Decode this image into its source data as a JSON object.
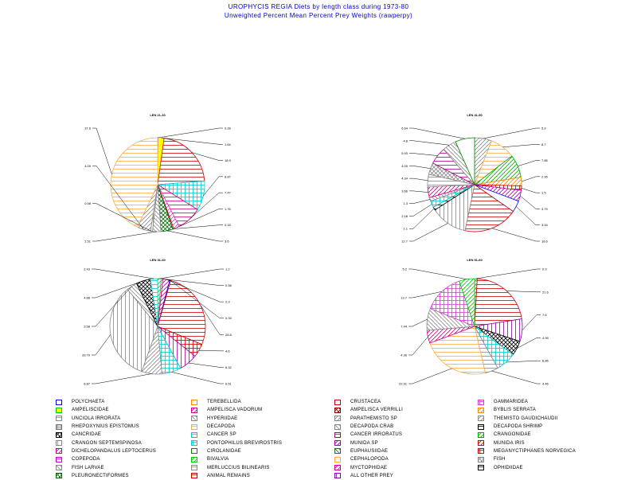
{
  "title": {
    "line1": "UROPHYCIS REGIA Diets by length class during 1973-80",
    "line2": "Unweighted Percent Mean Percent Prey Weights (rawperpy)"
  },
  "legend": [
    {
      "label": "POLYCHAETA",
      "color": "#0000ff",
      "pattern": "outline"
    },
    {
      "label": "AMPELISCIDAE",
      "color": "#00cc00",
      "pattern": "solid-yellow"
    },
    {
      "label": "UNCIOLA IRRORATA",
      "color": "#888888",
      "pattern": "hstripe"
    },
    {
      "label": "RHEPOXYNIUS EPISTOMUS",
      "color": "#777777",
      "pattern": "check"
    },
    {
      "label": "CANCRIDAE",
      "color": "#000000",
      "pattern": "xcross"
    },
    {
      "label": "CRANGON SEPTEMSPINOSA",
      "color": "#888888",
      "pattern": "vstripe"
    },
    {
      "label": "DICHELOPANDALUS LEPTOCERUS",
      "color": "#cc0088",
      "pattern": "diag"
    },
    {
      "label": "COPEPODA",
      "color": "#cc00cc",
      "pattern": "hstripe"
    },
    {
      "label": "FISH LARVAE",
      "color": "#888888",
      "pattern": "diag2"
    },
    {
      "label": "PLEURONECTIFORMES",
      "color": "#006600",
      "pattern": "xcross"
    },
    {
      "label": "TEREBELLIDA",
      "color": "#ff8800",
      "pattern": "outline"
    },
    {
      "label": "AMPELISCA VADORUM",
      "color": "#cc0088",
      "pattern": "diag"
    },
    {
      "label": "HYPERIIDAE",
      "color": "#888888",
      "pattern": "diag2"
    },
    {
      "label": "DECAPODA",
      "color": "#ffaa44",
      "pattern": "hstripe"
    },
    {
      "label": "CANCER SP",
      "color": "#00cccc",
      "pattern": "hstripe"
    },
    {
      "label": "PONTOPHILUS BREVIROSTRIS",
      "color": "#00cccc",
      "pattern": "grid"
    },
    {
      "label": "CIROLANIDAE",
      "color": "#008800",
      "pattern": "outline"
    },
    {
      "label": "BIVALVIA",
      "color": "#00cc00",
      "pattern": "diag"
    },
    {
      "label": "MERLUCCIUS BILINEARIS",
      "color": "#888888",
      "pattern": "hstripe"
    },
    {
      "label": "ANIMAL REMAINS",
      "color": "#cc0000",
      "pattern": "hstripe"
    },
    {
      "label": "CRUSTACEA",
      "color": "#cc0000",
      "pattern": "outline"
    },
    {
      "label": "AMPELISCA VERRILLI",
      "color": "#880000",
      "pattern": "xcross"
    },
    {
      "label": "PARATHEMISTO SP",
      "color": "#888888",
      "pattern": "diag"
    },
    {
      "label": "DECAPODA CRAB",
      "color": "#888888",
      "pattern": "diag2"
    },
    {
      "label": "CANCER IRRORATUS",
      "color": "#aa0088",
      "pattern": "hstripe"
    },
    {
      "label": "MUNIDA SP",
      "color": "#aa00aa",
      "pattern": "diag"
    },
    {
      "label": "EUPHAUSIIDAE",
      "color": "#008800",
      "pattern": "diag2"
    },
    {
      "label": "CEPHALOPODA",
      "color": "#ffaa44",
      "pattern": "outline"
    },
    {
      "label": "MYCTOPHIDAE",
      "color": "#cc0088",
      "pattern": "diag"
    },
    {
      "label": "ALL OTHER PREY",
      "color": "#8800aa",
      "pattern": "vstripe"
    },
    {
      "label": "GAMMARIDEA",
      "color": "#cc44cc",
      "pattern": "grid"
    },
    {
      "label": "BYBLIS SERRATA",
      "color": "#ff8800",
      "pattern": "diag"
    },
    {
      "label": "THEMISTO GAUDICHAUDII",
      "color": "#888888",
      "pattern": "diag"
    },
    {
      "label": "DECAPODA SHRIMP",
      "color": "#000000",
      "pattern": "hstripe"
    },
    {
      "label": "CRANGONIDAE",
      "color": "#00aa00",
      "pattern": "diag"
    },
    {
      "label": "MUNIDA IRIS",
      "color": "#cc0000",
      "pattern": "diag"
    },
    {
      "label": "MEGANYCTIPHANES NORVEGICA",
      "color": "#cc0000",
      "pattern": "grid"
    },
    {
      "label": "FISH",
      "color": "#888888",
      "pattern": "xcross"
    },
    {
      "label": "OPHIDIIDAE",
      "color": "#000000",
      "pattern": "hstripe"
    }
  ],
  "chart_data": [
    {
      "type": "pie",
      "title": "LEN 21-30",
      "colors": [
        "#0000ff",
        "#ffff00",
        "#cc0000",
        "#00cccc",
        "#cc0088",
        "#cc44cc",
        "#cc0000",
        "#006600",
        "#888888",
        "#888888",
        "#888888",
        "#ffaa44"
      ],
      "patterns": [
        "outline",
        "solid-yellow",
        "hstripe",
        "grid",
        "hstripe",
        "diag",
        "hstripe",
        "xcross",
        "diag2",
        "vstripe",
        "diag",
        "hstripe"
      ],
      "values": [
        0.28,
        1.64,
        18.9,
        8.87,
        7.47,
        1.76,
        0.33,
        3.6,
        2.51,
        0.58,
        4.09,
        37.6
      ],
      "labels": [
        "0.28",
        "1.64",
        "18.9",
        "8.87",
        "7.47",
        "1.76",
        "0.33",
        "3.6",
        "2.51",
        "0.58",
        "4.09",
        "37.6"
      ]
    },
    {
      "type": "pie",
      "title": "LEN 41-50",
      "colors": [
        "#888888",
        "#ffaa44",
        "#00aa00",
        "#ff8800",
        "#cc0000",
        "#aa00aa",
        "#0000ff",
        "#cc0000",
        "#888888",
        "#000000",
        "#00cccc",
        "#888888",
        "#cc0088",
        "#888888",
        "#888888",
        "#aa0088",
        "#888888",
        "#008800"
      ],
      "patterns": [
        "diag",
        "hstripe",
        "diag",
        "diag",
        "grid",
        "diag",
        "outline",
        "hstripe",
        "vstripe",
        "hstripe",
        "grid",
        "diag2",
        "diag",
        "hstripe",
        "xcross",
        "hstripe",
        "diag2",
        "outline"
      ],
      "values": [
        5.9,
        8.7,
        7.85,
        2.95,
        1.5,
        3.79,
        3.94,
        18.6,
        12.7,
        1.1,
        2.18,
        1.3,
        3.66,
        4.34,
        4.05,
        5.93,
        4.8,
        6.64
      ],
      "labels": [
        "5.9",
        "8.7",
        "7.85",
        "2.95",
        "1.5",
        "3.79",
        "3.94",
        "18.6",
        "12.7",
        "1.1",
        "2.18",
        "1.3",
        "3.66",
        "4.34",
        "4.05",
        "5.93",
        "4.8",
        "6.64"
      ]
    },
    {
      "type": "pie",
      "title": "LEN 31-40",
      "colors": [
        "#00cc00",
        "#888888",
        "#cc0088",
        "#0000ff",
        "#cc0000",
        "#cc0000",
        "#aa00aa",
        "#00cccc",
        "#888888",
        "#888888",
        "#888888",
        "#000000",
        "#00cccc"
      ],
      "patterns": [
        "diag",
        "hstripe",
        "diag",
        "outline",
        "hstripe",
        "grid",
        "vstripe",
        "grid",
        "diag",
        "vstripe",
        "diag2",
        "xcross",
        "hstripe"
      ],
      "values": [
        1.2,
        0.58,
        2.3,
        0.33,
        26.8,
        4.6,
        6.32,
        6.51,
        6.87,
        33.79,
        3.58,
        4.88,
        2.43
      ],
      "labels": [
        "1.2",
        "0.58",
        "2.3",
        "0.33",
        "26.8",
        "4.6",
        "6.32",
        "6.51",
        "6.87",
        "33.79",
        "3.58",
        "4.88",
        "2.43"
      ]
    },
    {
      "type": "pie",
      "title": "LEN 51-60",
      "colors": [
        "#888888",
        "#cc0000",
        "#8800aa",
        "#000000",
        "#00cccc",
        "#888888",
        "#ffaa44",
        "#cc0088",
        "#888888",
        "#cc44cc",
        "#00cc00"
      ],
      "patterns": [
        "xcross",
        "hstripe",
        "vstripe",
        "xcross",
        "grid",
        "hstripe",
        "hstripe",
        "diag",
        "diag2",
        "grid",
        "diag"
      ],
      "values": [
        0.9,
        21.6,
        7.6,
        4.99,
        6.86,
        4.46,
        22.91,
        4.36,
        7.44,
        13.7,
        5.2
      ],
      "labels": [
        "0.9",
        "21.6",
        "7.6",
        "4.99",
        "6.86",
        "4.46",
        "22.91",
        "4.36",
        "7.44",
        "13.7",
        "5.2"
      ]
    }
  ]
}
